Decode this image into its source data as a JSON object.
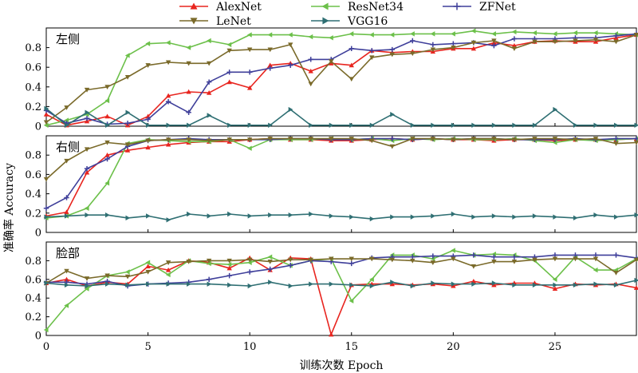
{
  "chart_data": {
    "type": "line",
    "xlabel": "训练次数 Epoch",
    "ylabel": "准确率 Accuracy",
    "x": [
      0,
      1,
      2,
      3,
      4,
      5,
      6,
      7,
      8,
      9,
      10,
      11,
      12,
      13,
      14,
      15,
      16,
      17,
      18,
      19,
      20,
      21,
      22,
      23,
      24,
      25,
      26,
      27,
      28,
      29
    ],
    "xlim": [
      0,
      29
    ],
    "xticks": [
      "0",
      "5",
      "10",
      "15",
      "20",
      "25"
    ],
    "yticks": [
      "0",
      "0.2",
      "0.4",
      "0.6",
      "0.8"
    ],
    "ylim": [
      0,
      1.0
    ],
    "legend": {
      "placement": "top",
      "entries": [
        {
          "name": "AlexNet",
          "color": "#e8251f",
          "marker": "triangle-up"
        },
        {
          "name": "ResNet34",
          "color": "#6cc04a",
          "marker": "triangle-left"
        },
        {
          "name": "ZFNet",
          "color": "#3f3f9a",
          "marker": "plus"
        },
        {
          "name": "LeNet",
          "color": "#7a6a2a",
          "marker": "triangle-down"
        },
        {
          "name": "VGG16",
          "color": "#2f6f73",
          "marker": "triangle-right"
        }
      ]
    },
    "panels": [
      {
        "title": "左侧",
        "series": [
          {
            "name": "AlexNet",
            "values": [
              0.12,
              0.01,
              0.05,
              0.1,
              0.01,
              0.1,
              0.31,
              0.35,
              0.34,
              0.45,
              0.39,
              0.62,
              0.64,
              0.56,
              0.64,
              0.62,
              0.77,
              0.75,
              0.76,
              0.76,
              0.79,
              0.79,
              0.85,
              0.82,
              0.86,
              0.87,
              0.86,
              0.86,
              0.9,
              0.93
            ]
          },
          {
            "name": "ResNet34",
            "values": [
              0.01,
              0.06,
              0.12,
              0.26,
              0.72,
              0.84,
              0.85,
              0.8,
              0.87,
              0.83,
              0.93,
              0.93,
              0.93,
              0.91,
              0.9,
              0.94,
              0.93,
              0.93,
              0.94,
              0.94,
              0.94,
              0.97,
              0.94,
              0.96,
              0.95,
              0.94,
              0.95,
              0.95,
              0.94,
              0.93
            ]
          },
          {
            "name": "ZFNet",
            "values": [
              0.16,
              0.03,
              0.08,
              0.02,
              0.03,
              0.07,
              0.25,
              0.14,
              0.45,
              0.55,
              0.55,
              0.59,
              0.62,
              0.68,
              0.68,
              0.79,
              0.77,
              0.78,
              0.87,
              0.83,
              0.84,
              0.85,
              0.82,
              0.89,
              0.89,
              0.89,
              0.9,
              0.9,
              0.92,
              0.94
            ]
          },
          {
            "name": "LeNet",
            "values": [
              0.04,
              0.19,
              0.37,
              0.4,
              0.5,
              0.62,
              0.65,
              0.64,
              0.64,
              0.77,
              0.78,
              0.78,
              0.83,
              0.43,
              0.66,
              0.48,
              0.7,
              0.73,
              0.74,
              0.78,
              0.8,
              0.85,
              0.87,
              0.79,
              0.86,
              0.86,
              0.87,
              0.88,
              0.86,
              0.93
            ]
          },
          {
            "name": "VGG16",
            "values": [
              0.18,
              0.01,
              0.14,
              0.01,
              0.14,
              0.01,
              0.01,
              0.01,
              0.11,
              0.01,
              0.01,
              0.01,
              0.17,
              0.01,
              0.01,
              0.01,
              0.01,
              0.12,
              0.01,
              0.01,
              0.01,
              0.01,
              0.01,
              0.01,
              0.01,
              0.17,
              0.01,
              0.01,
              0.01,
              0.01
            ]
          }
        ]
      },
      {
        "title": "右侧",
        "series": [
          {
            "name": "AlexNet",
            "values": [
              0.17,
              0.21,
              0.62,
              0.8,
              0.85,
              0.88,
              0.91,
              0.93,
              0.94,
              0.94,
              0.96,
              0.97,
              0.96,
              0.96,
              0.95,
              0.95,
              0.96,
              0.97,
              0.96,
              0.97,
              0.96,
              0.96,
              0.95,
              0.96,
              0.96,
              0.95,
              0.96,
              0.96,
              0.96,
              0.97
            ]
          },
          {
            "name": "ResNet34",
            "values": [
              0.15,
              0.17,
              0.25,
              0.51,
              0.92,
              0.96,
              0.95,
              0.94,
              0.94,
              0.96,
              0.87,
              0.96,
              0.96,
              0.96,
              0.97,
              0.96,
              0.97,
              0.95,
              0.97,
              0.96,
              0.97,
              0.96,
              0.96,
              0.97,
              0.95,
              0.93,
              0.96,
              0.95,
              0.96,
              0.97
            ]
          },
          {
            "name": "ZFNet",
            "values": [
              0.25,
              0.36,
              0.66,
              0.76,
              0.89,
              0.95,
              0.96,
              0.97,
              0.96,
              0.96,
              0.96,
              0.96,
              0.97,
              0.97,
              0.96,
              0.96,
              0.97,
              0.97,
              0.96,
              0.97,
              0.96,
              0.97,
              0.97,
              0.96,
              0.96,
              0.96,
              0.97,
              0.96,
              0.97,
              0.97
            ]
          },
          {
            "name": "LeNet",
            "values": [
              0.55,
              0.74,
              0.86,
              0.93,
              0.91,
              0.95,
              0.96,
              0.96,
              0.95,
              0.96,
              0.96,
              0.97,
              0.97,
              0.97,
              0.97,
              0.97,
              0.95,
              0.89,
              0.97,
              0.97,
              0.96,
              0.97,
              0.97,
              0.96,
              0.97,
              0.97,
              0.96,
              0.97,
              0.92,
              0.93
            ]
          },
          {
            "name": "VGG16",
            "values": [
              0.16,
              0.17,
              0.18,
              0.18,
              0.15,
              0.17,
              0.13,
              0.19,
              0.17,
              0.19,
              0.17,
              0.18,
              0.18,
              0.19,
              0.17,
              0.16,
              0.14,
              0.16,
              0.16,
              0.17,
              0.19,
              0.16,
              0.17,
              0.16,
              0.17,
              0.16,
              0.15,
              0.18,
              0.16,
              0.18
            ]
          }
        ]
      },
      {
        "title": "脸部",
        "series": [
          {
            "name": "AlexNet",
            "values": [
              0.56,
              0.6,
              0.53,
              0.57,
              0.55,
              0.74,
              0.7,
              0.8,
              0.78,
              0.72,
              0.83,
              0.7,
              0.83,
              0.82,
              0.01,
              0.54,
              0.55,
              0.55,
              0.54,
              0.55,
              0.53,
              0.58,
              0.54,
              0.56,
              0.56,
              0.5,
              0.55,
              0.54,
              0.55,
              0.51
            ]
          },
          {
            "name": "ResNet34",
            "values": [
              0.06,
              0.32,
              0.5,
              0.64,
              0.68,
              0.78,
              0.65,
              0.8,
              0.77,
              0.76,
              0.78,
              0.84,
              0.75,
              0.8,
              0.82,
              0.37,
              0.6,
              0.86,
              0.86,
              0.82,
              0.91,
              0.86,
              0.87,
              0.86,
              0.8,
              0.6,
              0.84,
              0.7,
              0.7,
              0.82
            ]
          },
          {
            "name": "ZFNet",
            "values": [
              0.57,
              0.57,
              0.55,
              0.58,
              0.53,
              0.55,
              0.56,
              0.57,
              0.6,
              0.64,
              0.68,
              0.71,
              0.75,
              0.8,
              0.79,
              0.77,
              0.83,
              0.84,
              0.84,
              0.85,
              0.85,
              0.86,
              0.84,
              0.84,
              0.84,
              0.86,
              0.86,
              0.86,
              0.86,
              0.83
            ]
          },
          {
            "name": "LeNet",
            "values": [
              0.56,
              0.69,
              0.61,
              0.64,
              0.63,
              0.68,
              0.78,
              0.79,
              0.8,
              0.8,
              0.81,
              0.79,
              0.81,
              0.81,
              0.82,
              0.82,
              0.82,
              0.81,
              0.8,
              0.78,
              0.82,
              0.74,
              0.79,
              0.79,
              0.81,
              0.82,
              0.82,
              0.82,
              0.67,
              0.81
            ]
          },
          {
            "name": "VGG16",
            "values": [
              0.56,
              0.54,
              0.53,
              0.55,
              0.54,
              0.55,
              0.55,
              0.55,
              0.55,
              0.54,
              0.53,
              0.57,
              0.53,
              0.55,
              0.55,
              0.54,
              0.53,
              0.57,
              0.53,
              0.56,
              0.55,
              0.55,
              0.56,
              0.54,
              0.54,
              0.54,
              0.54,
              0.55,
              0.54,
              0.59
            ]
          }
        ]
      }
    ]
  }
}
